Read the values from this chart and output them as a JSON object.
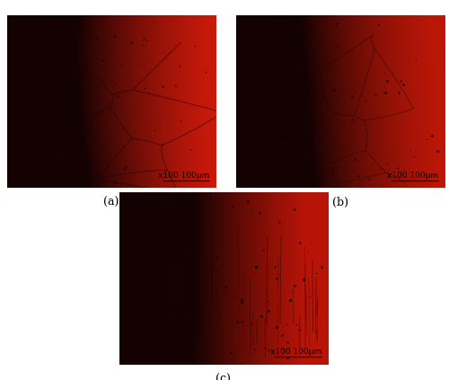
{
  "figure_width": 5.0,
  "figure_height": 4.23,
  "dpi": 100,
  "background_color": "#ffffff",
  "labels": [
    "(a)",
    "(b)",
    "(c)"
  ],
  "scale_text": "x100 100μm",
  "label_fontsize": 9,
  "scale_fontsize": 6.5,
  "colors": {
    "dark": [
      0.08,
      0.01,
      0.01
    ],
    "red_a": [
      0.8,
      0.1,
      0.04
    ],
    "red_b": [
      0.75,
      0.09,
      0.03
    ],
    "red_c": [
      0.72,
      0.08,
      0.03
    ],
    "grain_line": "#1a0404",
    "spot": "#0a0005"
  },
  "axes": {
    "a": [
      0.015,
      0.505,
      0.465,
      0.455
    ],
    "b": [
      0.525,
      0.505,
      0.465,
      0.455
    ],
    "c": [
      0.265,
      0.04,
      0.465,
      0.455
    ]
  }
}
